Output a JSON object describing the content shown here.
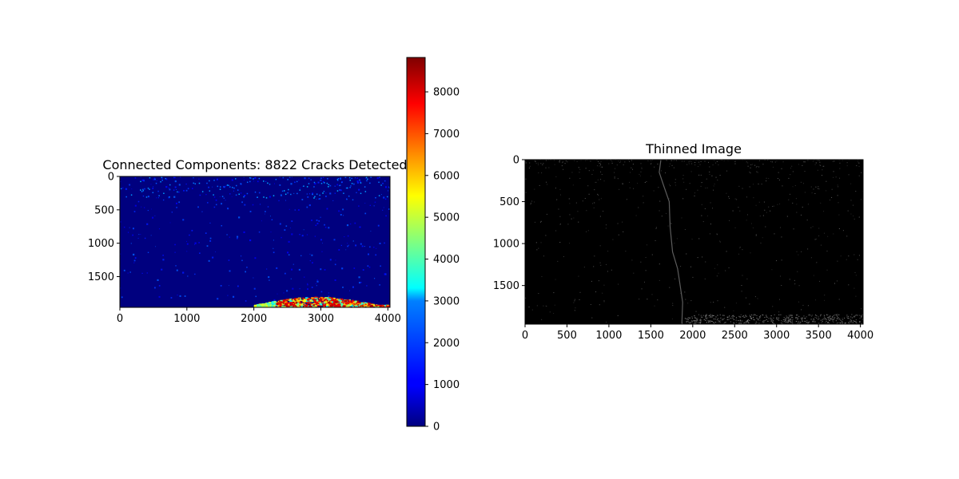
{
  "figure": {
    "panels": [
      {
        "title": "Connected Components: 8822 Cracks Detected",
        "x_ticks": [
          "0",
          "1000",
          "2000",
          "3000",
          "4000"
        ],
        "y_ticks": [
          "0",
          "500",
          "1000",
          "1500"
        ],
        "colormap": "jet",
        "xlim": [
          0,
          4032
        ],
        "ylim": [
          1960,
          0
        ]
      },
      {
        "title": "Thinned Image",
        "x_ticks": [
          "0",
          "500",
          "1000",
          "1500",
          "2000",
          "2500",
          "3000",
          "3500",
          "4000"
        ],
        "y_ticks": [
          "0",
          "500",
          "1000",
          "1500"
        ],
        "colormap": "gray",
        "xlim": [
          0,
          4032
        ],
        "ylim": [
          1960,
          0
        ]
      }
    ],
    "colorbar": {
      "ticks": [
        "0",
        "1000",
        "2000",
        "3000",
        "4000",
        "5000",
        "6000",
        "7000",
        "8000"
      ],
      "range": [
        0,
        8822
      ]
    }
  },
  "chart_data": [
    {
      "type": "heatmap",
      "title": "Connected Components: 8822 Cracks Detected",
      "xlabel": "",
      "ylabel": "",
      "xlim": [
        0,
        4032
      ],
      "ylim": [
        1960,
        0
      ],
      "x_ticks": [
        0,
        1000,
        2000,
        3000,
        4000
      ],
      "y_ticks": [
        0,
        500,
        1000,
        1500
      ],
      "colormap": "jet",
      "colorbar_range": [
        0,
        8822
      ],
      "colorbar_ticks": [
        0,
        1000,
        2000,
        3000,
        4000,
        5000,
        6000,
        7000,
        8000
      ],
      "background_label": 0,
      "high_label_region": {
        "x_range": [
          2000,
          4032
        ],
        "y_range": [
          1800,
          1960
        ],
        "label_range": [
          5000,
          8800
        ]
      },
      "grid": false
    },
    {
      "type": "heatmap",
      "title": "Thinned Image",
      "xlabel": "",
      "ylabel": "",
      "xlim": [
        0,
        4032
      ],
      "ylim": [
        1960,
        0
      ],
      "x_ticks": [
        0,
        500,
        1000,
        1500,
        2000,
        2500,
        3000,
        3500,
        4000
      ],
      "y_ticks": [
        0,
        500,
        1000,
        1500
      ],
      "colormap": "gray",
      "main_crack_path": [
        [
          1620,
          0
        ],
        [
          1600,
          150
        ],
        [
          1650,
          300
        ],
        [
          1720,
          500
        ],
        [
          1730,
          800
        ],
        [
          1760,
          1100
        ],
        [
          1820,
          1300
        ],
        [
          1850,
          1500
        ],
        [
          1880,
          1700
        ],
        [
          1870,
          1960
        ]
      ],
      "grid": false
    }
  ]
}
